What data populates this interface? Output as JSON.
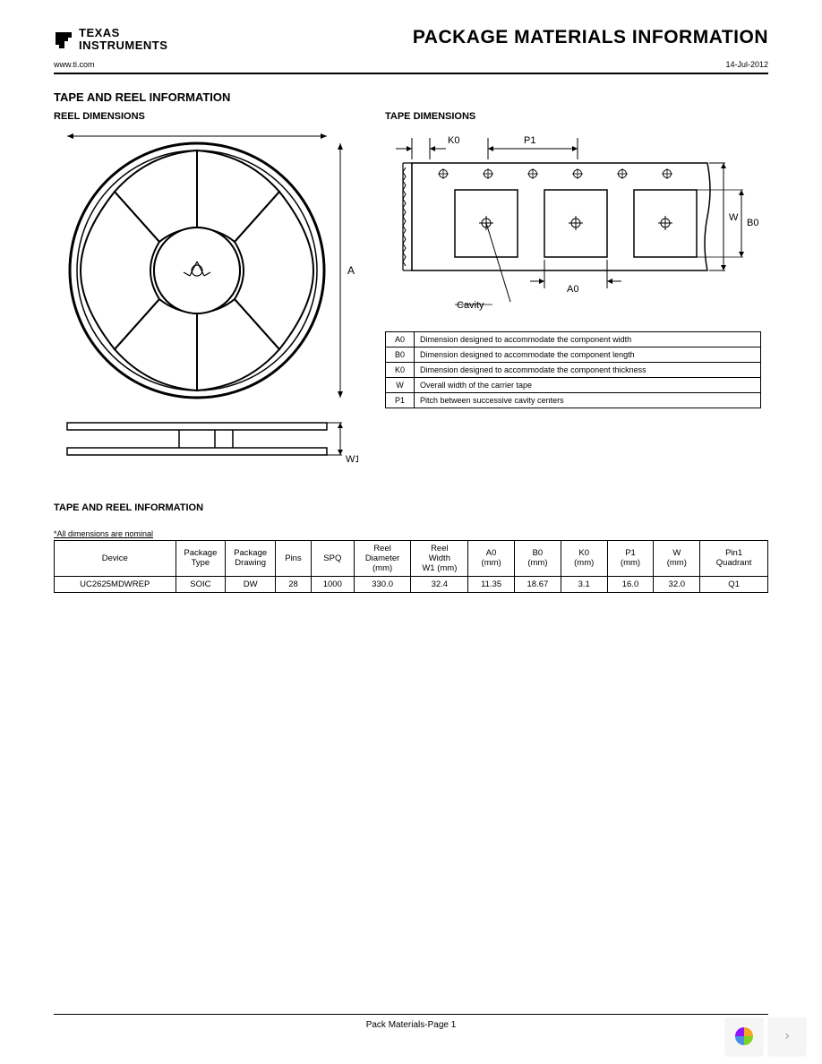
{
  "header": {
    "company_line1": "TEXAS",
    "company_line2": "INSTRUMENTS",
    "page_title": "PACKAGE MATERIALS INFORMATION",
    "url": "www.ti.com",
    "date": "14-Jul-2012"
  },
  "sections": {
    "main_title": "TAPE AND REEL INFORMATION",
    "reel_title": "REEL DIMENSIONS",
    "tape_title": "TAPE DIMENSIONS",
    "table_title": "TAPE AND REEL INFORMATION",
    "note": "*All dimensions are nominal"
  },
  "reel_diagram": {
    "label_A": "A",
    "label_W1": "W1",
    "stroke": "#000000",
    "fill": "#ffffff"
  },
  "tape_diagram": {
    "label_K0": "K0",
    "label_P1": "P1",
    "label_W": "W",
    "label_B0": "B0",
    "label_A0": "A0",
    "label_cavity": "Cavity",
    "stroke": "#000000"
  },
  "legend": {
    "rows": [
      {
        "sym": "A0",
        "desc": "Dimension designed to accommodate the component width"
      },
      {
        "sym": "B0",
        "desc": "Dimension designed to accommodate the component length"
      },
      {
        "sym": "K0",
        "desc": "Dimension designed to accommodate the component thickness"
      },
      {
        "sym": "W",
        "desc": "Overall width of the carrier tape"
      },
      {
        "sym": "P1",
        "desc": "Pitch between successive cavity centers"
      }
    ]
  },
  "data_table": {
    "headers": [
      "Device",
      "Package\nType",
      "Package\nDrawing",
      "Pins",
      "SPQ",
      "Reel\nDiameter\n(mm)",
      "Reel\nWidth\nW1 (mm)",
      "A0\n(mm)",
      "B0\n(mm)",
      "K0\n(mm)",
      "P1\n(mm)",
      "W\n(mm)",
      "Pin1\nQuadrant"
    ],
    "row": [
      "UC2625MDWREP",
      "SOIC",
      "DW",
      "28",
      "1000",
      "330.0",
      "32.4",
      "11.35",
      "18.67",
      "3.1",
      "16.0",
      "32.0",
      "Q1"
    ],
    "col_widths_pct": [
      17,
      7,
      7,
      5,
      6,
      8,
      8,
      6.5,
      6.5,
      6.5,
      6.5,
      6.5,
      9.5
    ]
  },
  "footer": {
    "text": "Pack Materials-Page 1"
  },
  "widget": {
    "colors": [
      "#f5a623",
      "#9013fe",
      "#7ed321",
      "#4a90e2"
    ],
    "chevron_color": "#aaaaaa"
  }
}
